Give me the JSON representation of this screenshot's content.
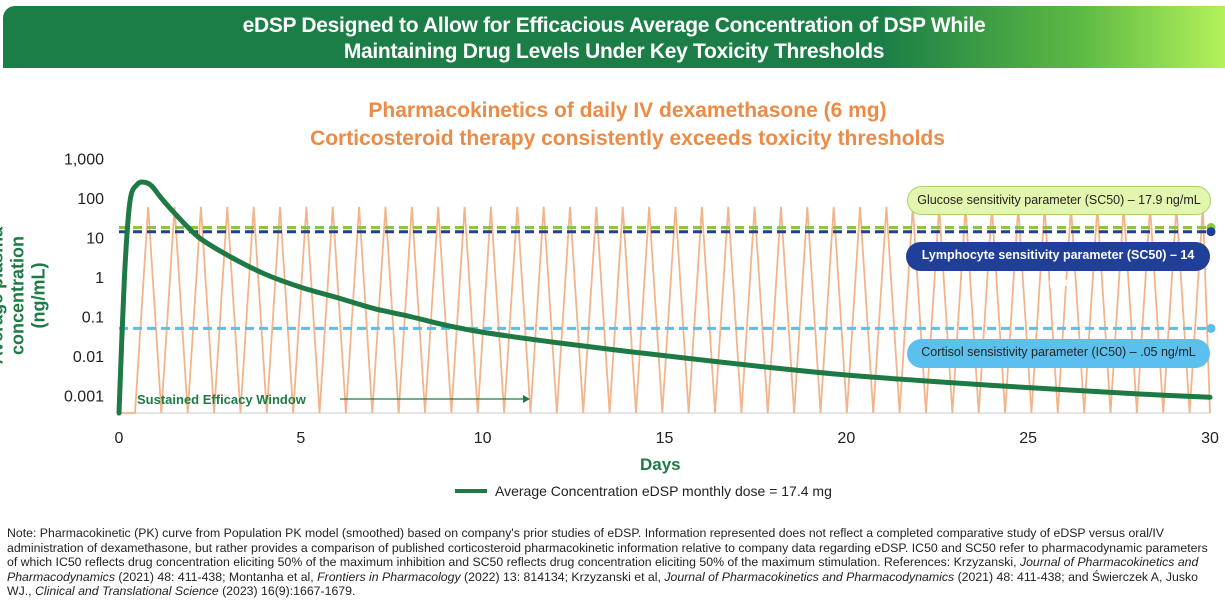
{
  "header": {
    "line1": "eDSP Designed to Allow for Efficacious Average Concentration of DSP While",
    "line2": "Maintaining Drug Levels Under Key Toxicity Thresholds"
  },
  "chart_data": {
    "type": "line",
    "title": [
      "Pharmacokinetics of daily IV dexamethasone (6 mg)",
      "Corticosteroid therapy consistently exceeds toxicity thresholds"
    ],
    "xlabel": "Days",
    "ylabel": "Average plasma concentration (ng/mL)",
    "xlim": [
      0,
      30
    ],
    "ylim": [
      0.00035,
      1000
    ],
    "yscale": "log",
    "xticks": [
      "0",
      "5",
      "10",
      "15",
      "20",
      "25",
      "30"
    ],
    "yticks": [
      {
        "v": 1000,
        "label": "1,000"
      },
      {
        "v": 100,
        "label": "100"
      },
      {
        "v": 10,
        "label": "10"
      },
      {
        "v": 1,
        "label": "1"
      },
      {
        "v": 0.1,
        "label": "0.1"
      },
      {
        "v": 0.01,
        "label": "0.01"
      },
      {
        "v": 0.001,
        "label": "0.001"
      }
    ],
    "series": [
      {
        "name": "Average Concentration eDSP monthly dose = 17.4 mg",
        "color": "#1e7a45",
        "points": [
          [
            0,
            0.00035
          ],
          [
            0.15,
            1
          ],
          [
            0.3,
            80
          ],
          [
            0.5,
            220
          ],
          [
            0.7,
            250
          ],
          [
            0.9,
            200
          ],
          [
            1.2,
            90
          ],
          [
            1.6,
            35
          ],
          [
            2.2,
            10
          ],
          [
            3,
            3.5
          ],
          [
            4,
            1.2
          ],
          [
            5,
            0.55
          ],
          [
            6,
            0.3
          ],
          [
            7,
            0.16
          ],
          [
            8,
            0.1
          ],
          [
            9,
            0.06
          ],
          [
            10,
            0.04
          ],
          [
            12,
            0.022
          ],
          [
            14,
            0.013
          ],
          [
            16,
            0.008
          ],
          [
            18,
            0.005
          ],
          [
            20,
            0.0033
          ],
          [
            22,
            0.0024
          ],
          [
            24,
            0.0018
          ],
          [
            26,
            0.0014
          ],
          [
            28,
            0.0011
          ],
          [
            30,
            0.0009
          ]
        ]
      },
      {
        "name": "Daily IV dexamethasone (6 mg)",
        "color": "#f2b58b",
        "pattern": "zigzag",
        "peak": 60,
        "trough": 0.00035,
        "first_trough_day": 0.44,
        "interval_days": 0.725
      }
    ],
    "thresholds": [
      {
        "label": "Glucose sensitivity parameter (SC50) – 17.9 ng/mL",
        "value": 17.9,
        "color": "#8cc63f",
        "box_bg": "#e2f7ad",
        "text_color": "#222"
      },
      {
        "label": "Lymphocyte sensitivity parameter (SC50) – 14 ng/ml",
        "value": 14,
        "color": "#1f3f99",
        "box_bg": "#1f3f99",
        "text_color": "#fff"
      },
      {
        "label": "Cortisol sensistivity parameter (IC50) – .05 ng/mL",
        "value": 0.05,
        "color": "#5bbfea",
        "box_bg": "#5bc0ee",
        "text_color": "#222"
      }
    ],
    "annotation": {
      "text": "Sustained Efficacy Window",
      "arrow_to_day": 11.3
    },
    "legend": "bottom"
  },
  "note": {
    "p1": "Note: Pharmacokinetic (PK) curve from Population PK model (smoothed) based on company's prior studies of eDSP. Information represented does not reflect a completed comparative study of eDSP versus oral/IV administration of dexamethasone, but rather provides a comparison of published corticosteroid pharmacokinetic information relative to company data regarding eDSP. IC50 and SC50 refer to pharmacodynamic parameters of which IC50 reflects drug concentration eliciting 50% of the maximum inhibition and SC50 reflects drug concentration eliciting 50% of the maximum stimulation. References: Krzyzanski, ",
    "i1": "Journal of Pharmacokinetics and Pharmacodynamics",
    "p2": " (2021) 48: 411-438; Montanha et al, ",
    "i2": "Frontiers in Pharmacology",
    "p3": " (2022) 13: 814134; Krzyzanski et al, ",
    "i3": "Journal of Pharmacokinetics and Pharmacodynamics",
    "p4": " (2021) 48: 411-438; and Świerczek A, Jusko WJ., ",
    "i4": "Clinical and Translational Science",
    "p5": " (2023) 16(9):1667-1679."
  }
}
